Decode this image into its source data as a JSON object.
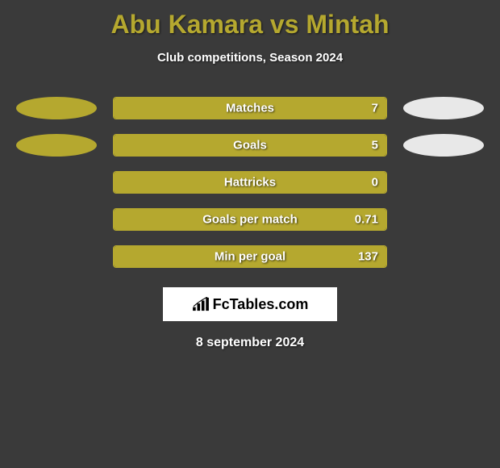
{
  "colors": {
    "background": "#3a3a3a",
    "primary": "#b5a82f",
    "secondary": "#e8e8e8",
    "title_text": "#b5a82f",
    "white": "#ffffff"
  },
  "title": {
    "player1": "Abu Kamara",
    "vs": "vs",
    "player2": "Mintah"
  },
  "subtitle": "Club competitions, Season 2024",
  "ellipse": {
    "left_color": "#b5a82f",
    "right_color": "#e8e8e8",
    "width": 100,
    "height": 28
  },
  "bar": {
    "outer_width": 340,
    "height": 28,
    "border_color": "#b5a82f",
    "fill_color": "#b5a82f",
    "border_radius": 4
  },
  "stats": [
    {
      "label": "Matches",
      "value": "7",
      "fill_pct": 100,
      "show_ellipses": true
    },
    {
      "label": "Goals",
      "value": "5",
      "fill_pct": 100,
      "show_ellipses": true
    },
    {
      "label": "Hattricks",
      "value": "0",
      "fill_pct": 100,
      "show_ellipses": false
    },
    {
      "label": "Goals per match",
      "value": "0.71",
      "fill_pct": 100,
      "show_ellipses": false
    },
    {
      "label": "Min per goal",
      "value": "137",
      "fill_pct": 100,
      "show_ellipses": false
    }
  ],
  "brand": {
    "text": "FcTables.com",
    "icon": "bars-icon"
  },
  "date": "8 september 2024"
}
